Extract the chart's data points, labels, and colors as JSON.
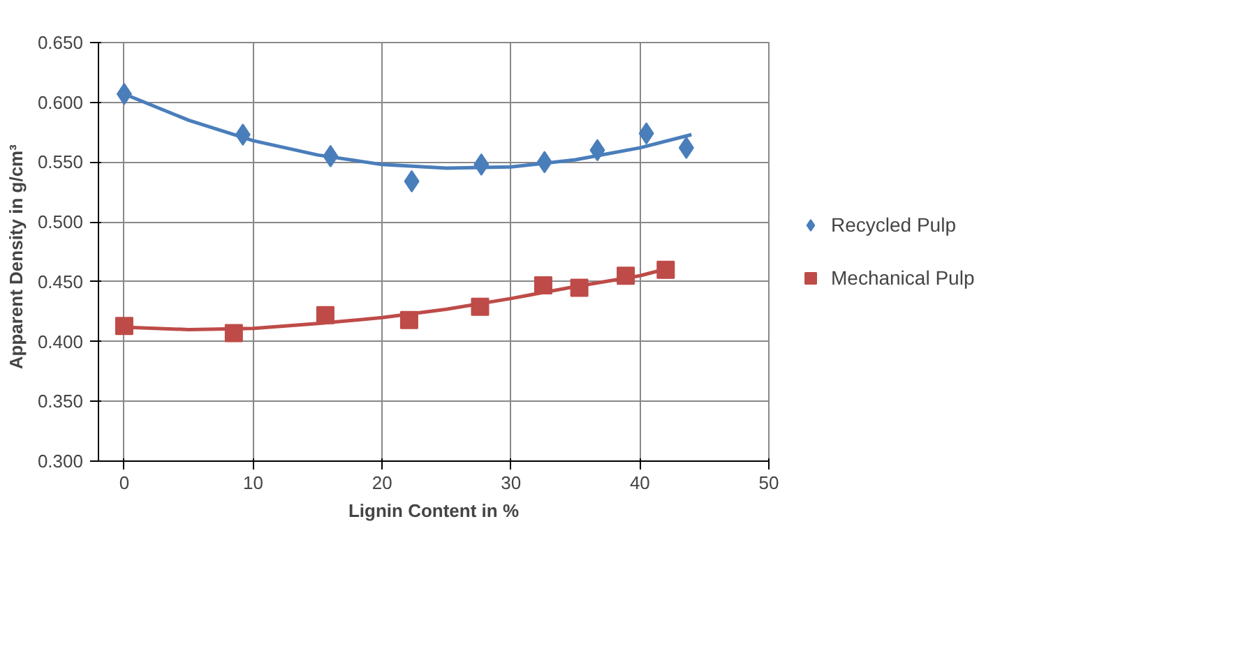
{
  "chart_data": {
    "type": "scatter",
    "xlabel": "Lignin Content in %",
    "ylabel": "Apparent  Density  in g/cm³",
    "xlim": [
      -2,
      50
    ],
    "xticks": [
      0,
      10,
      20,
      30,
      40,
      50
    ],
    "ylim": [
      0.3,
      0.65
    ],
    "yticks": [
      {
        "value": 0.3,
        "label": "0.300"
      },
      {
        "value": 0.35,
        "label": "0.350"
      },
      {
        "value": 0.4,
        "label": "0.400"
      },
      {
        "value": 0.45,
        "label": "0.450"
      },
      {
        "value": 0.5,
        "label": "0.500"
      },
      {
        "value": 0.55,
        "label": "0.550"
      },
      {
        "value": 0.6,
        "label": "0.600"
      },
      {
        "value": 0.65,
        "label": "0.650"
      }
    ],
    "grid": true,
    "legend": "right",
    "series": [
      {
        "name": "Recycled Pulp",
        "marker": "diamond",
        "color": "#4a7ebb",
        "x": [
          0,
          9.2,
          16.0,
          22.3,
          27.7,
          32.6,
          36.7,
          40.5,
          43.6
        ],
        "values": [
          0.607,
          0.573,
          0.555,
          0.534,
          0.548,
          0.55,
          0.56,
          0.574,
          0.562
        ]
      },
      {
        "name": "Mechanical Pulp",
        "marker": "square",
        "color": "#be4b48",
        "x": [
          0,
          8.5,
          15.6,
          22.1,
          27.6,
          32.5,
          35.3,
          38.9,
          42.0
        ],
        "values": [
          0.413,
          0.407,
          0.422,
          0.418,
          0.429,
          0.447,
          0.445,
          0.455,
          0.46
        ]
      },
      {
        "type": "line",
        "color": "#4a7ebb",
        "x": [
          0,
          5,
          10,
          15,
          20,
          25,
          30,
          35,
          40,
          44
        ],
        "values": [
          0.607,
          0.585,
          0.568,
          0.556,
          0.548,
          0.545,
          0.546,
          0.552,
          0.562,
          0.573
        ]
      },
      {
        "type": "line",
        "color": "#be4b48",
        "x": [
          0,
          5,
          10,
          15,
          20,
          25,
          30,
          35,
          40,
          42.5
        ],
        "values": [
          0.412,
          0.41,
          0.411,
          0.415,
          0.42,
          0.427,
          0.436,
          0.446,
          0.455,
          0.462
        ]
      }
    ]
  }
}
